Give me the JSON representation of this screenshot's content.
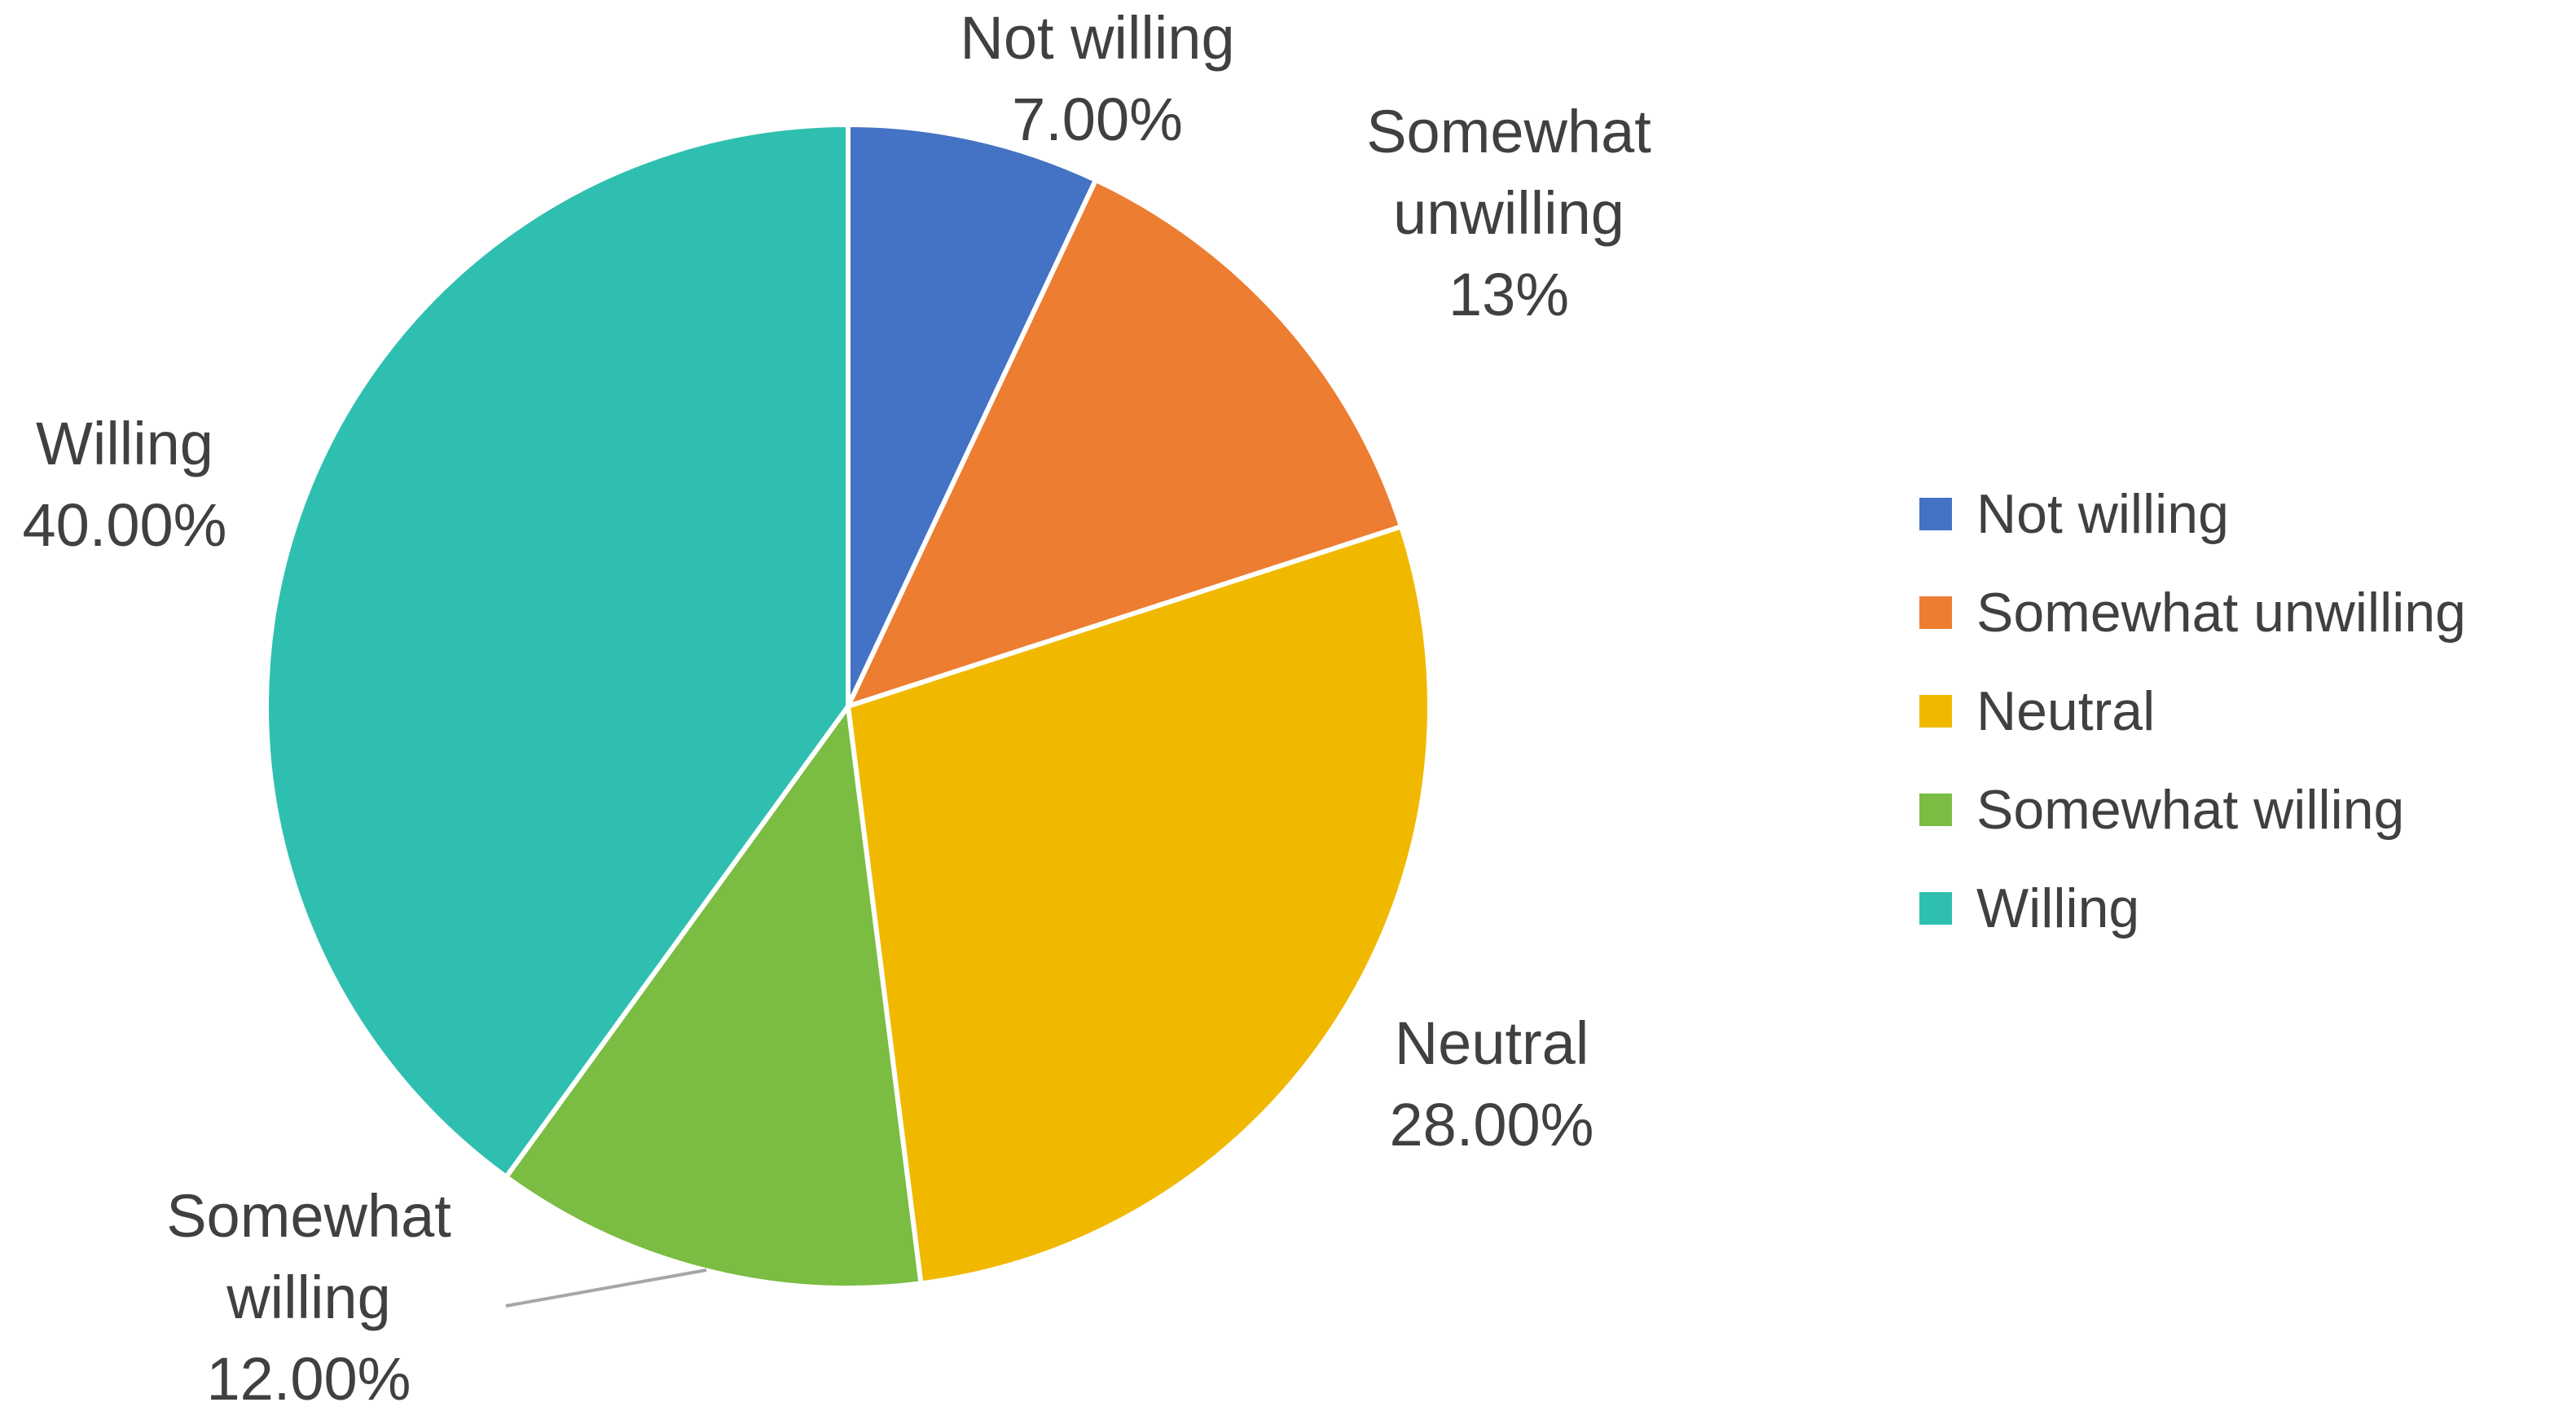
{
  "chart_data": {
    "type": "pie",
    "categories": [
      "Not willing",
      "Somewhat unwilling",
      "Neutral",
      "Somewhat willing",
      "Willing"
    ],
    "values": [
      7,
      13,
      28,
      12,
      40
    ],
    "value_labels": [
      "7.00%",
      "13%",
      "28.00%",
      "12.00%",
      "40.00%"
    ],
    "colors": [
      "#4472c4",
      "#ed7d31",
      "#f0b900",
      "#7abd42",
      "#2fbfb0"
    ],
    "legend": "right"
  }
}
